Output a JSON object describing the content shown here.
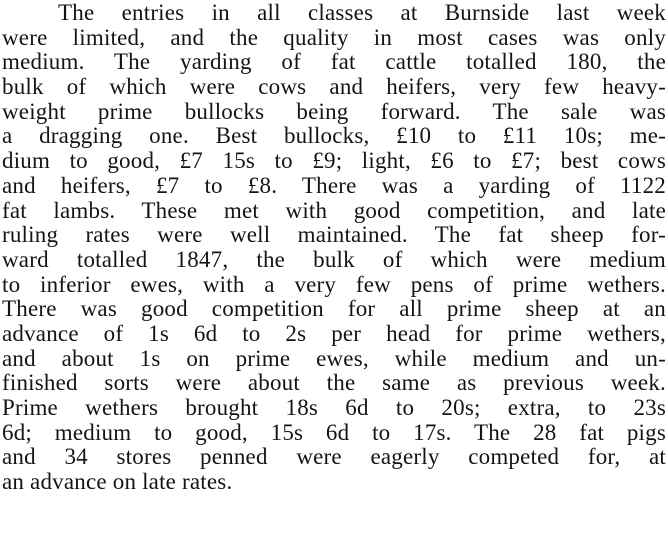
{
  "article": {
    "lines": [
      "The entries in all classes at Burnside last week",
      "were limited, and the quality in most cases was only",
      "medium.  The yarding of fat cattle totalled 180, the",
      "bulk of which were cows and heifers, very few heavy-",
      "weight prime bullocks being forward.  The sale was",
      "a dragging one.  Best bullocks, £10 to £11 10s; me-",
      "dium to good, £7 15s to £9; light, £6 to £7; best cows",
      "and heifers, £7 to £8.  There was a yarding of 1122",
      "fat lambs.  These met with good competition, and late",
      "ruling rates were well maintained.  The fat sheep for-",
      "ward totalled 1847, the bulk of which were medium",
      "to inferior ewes, with a very few pens of prime wethers.",
      "There was good competition for all prime sheep at an",
      "advance of 1s 6d to 2s per head for prime wethers,",
      "and about 1s on prime ewes, while medium and un-",
      "finished sorts were about the same as previous week.",
      "Prime wethers brought 18s 6d to 20s; extra, to 23s",
      "6d; medium to good, 15s 6d to 17s.  The 28 fat pigs",
      "and 34 stores penned were eagerly competed for, at",
      "an advance on late rates."
    ]
  }
}
